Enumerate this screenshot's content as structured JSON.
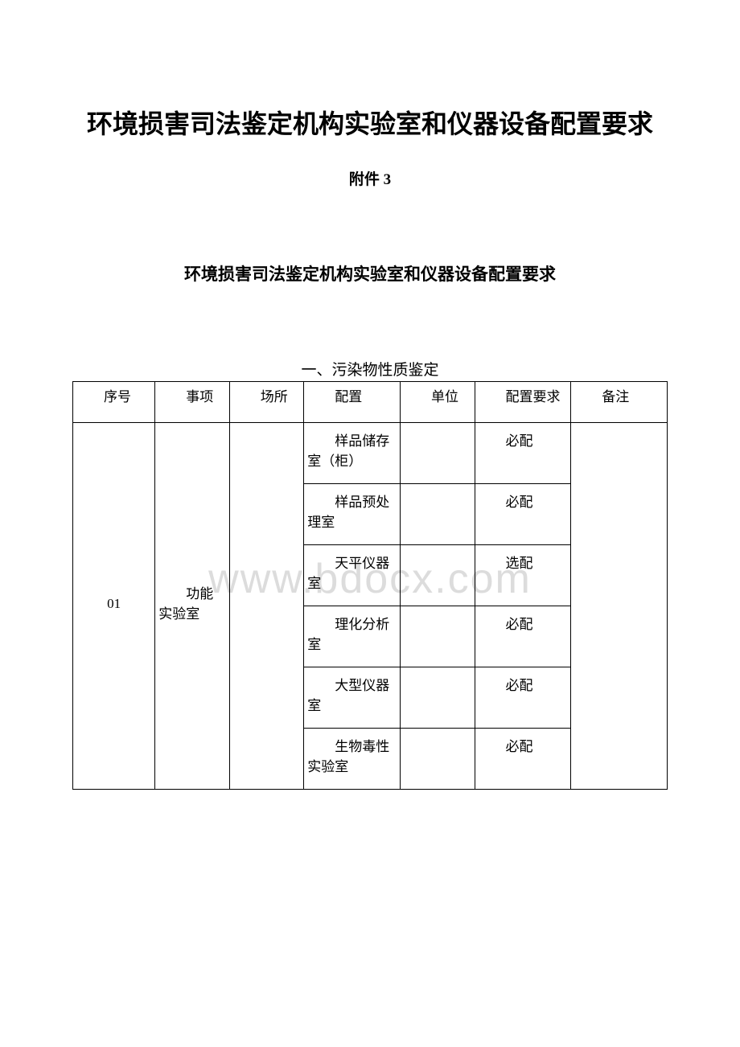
{
  "document": {
    "main_title": "环境损害司法鉴定机构实验室和仪器设备配置要求",
    "appendix_label": "附件 3",
    "sub_title": "环境损害司法鉴定机构实验室和仪器设备配置要求",
    "section_title": "一、污染物性质鉴定",
    "watermark_text": "www.bdocx.com"
  },
  "table": {
    "headers": {
      "seq": "序号",
      "item": "事项",
      "place": "场所",
      "config": "配置",
      "unit": "单位",
      "requirement": "配置要求",
      "note": "备注"
    },
    "body": {
      "seq_value": "01",
      "item_value": "功能实验室",
      "rows": [
        {
          "config": "样品储存室（柜）",
          "req": "必配"
        },
        {
          "config": "样品预处理室",
          "req": "必配"
        },
        {
          "config": "天平仪器室",
          "req": "选配"
        },
        {
          "config": "理化分析室",
          "req": "必配"
        },
        {
          "config": "大型仪器室",
          "req": "必配"
        },
        {
          "config": "生物毒性实验室",
          "req": "必配"
        }
      ]
    }
  },
  "colors": {
    "background": "#ffffff",
    "text": "#000000",
    "border": "#000000",
    "watermark": "#dcdcdc"
  },
  "typography": {
    "body_font": "SimSun",
    "title_fontsize": 32,
    "subtitle_fontsize": 21,
    "table_fontsize": 17
  }
}
